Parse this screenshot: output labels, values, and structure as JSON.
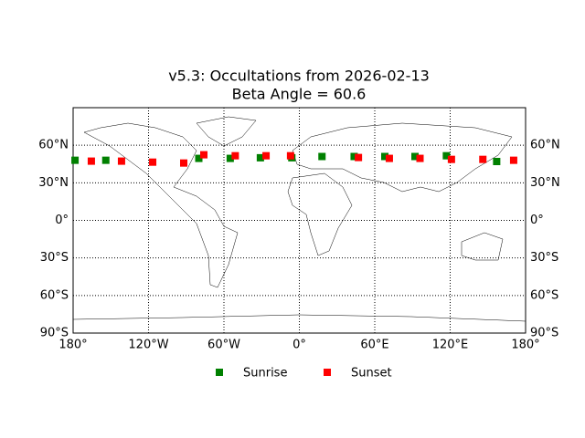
{
  "chart_data": {
    "type": "scatter",
    "title": "v5.3: Occultations from 2026-02-13",
    "subtitle": "Beta Angle = 60.6",
    "xlim": [
      -180,
      180
    ],
    "ylim": [
      -90,
      90
    ],
    "xticks": [
      {
        "value": -180,
        "label": "180°"
      },
      {
        "value": -120,
        "label": "120°W"
      },
      {
        "value": -60,
        "label": "60°W"
      },
      {
        "value": 0,
        "label": "0°"
      },
      {
        "value": 60,
        "label": "60°E"
      },
      {
        "value": 120,
        "label": "120°E"
      },
      {
        "value": 180,
        "label": "180°"
      }
    ],
    "yticks": [
      {
        "value": -90,
        "label": "90°S"
      },
      {
        "value": -60,
        "label": "60°S"
      },
      {
        "value": -30,
        "label": "30°S"
      },
      {
        "value": 0,
        "label": "0°"
      },
      {
        "value": 30,
        "label": "30°N"
      },
      {
        "value": 60,
        "label": "60°N"
      }
    ],
    "grid": true,
    "legend": "bottom",
    "series": [
      {
        "name": "Sunrise",
        "color": "#008000",
        "x": [
          -178.5,
          -154,
          -80,
          -55,
          -31,
          -6,
          18,
          43.6,
          68,
          92,
          117,
          157
        ],
        "values": [
          48,
          48,
          49.5,
          49.5,
          50,
          50,
          51,
          51,
          51,
          51,
          51.6,
          47
        ]
      },
      {
        "name": "Sunset",
        "color": "#ff0000",
        "x": [
          -165.5,
          -141.5,
          -116.7,
          -92,
          -76,
          -51,
          -26.5,
          -7,
          47,
          71.6,
          96,
          121,
          146,
          170.5
        ],
        "values": [
          47.3,
          47.3,
          46.5,
          45.8,
          52.4,
          51.6,
          51.6,
          51.6,
          50.2,
          49.5,
          49.5,
          48.7,
          48.7,
          48
        ]
      }
    ]
  }
}
